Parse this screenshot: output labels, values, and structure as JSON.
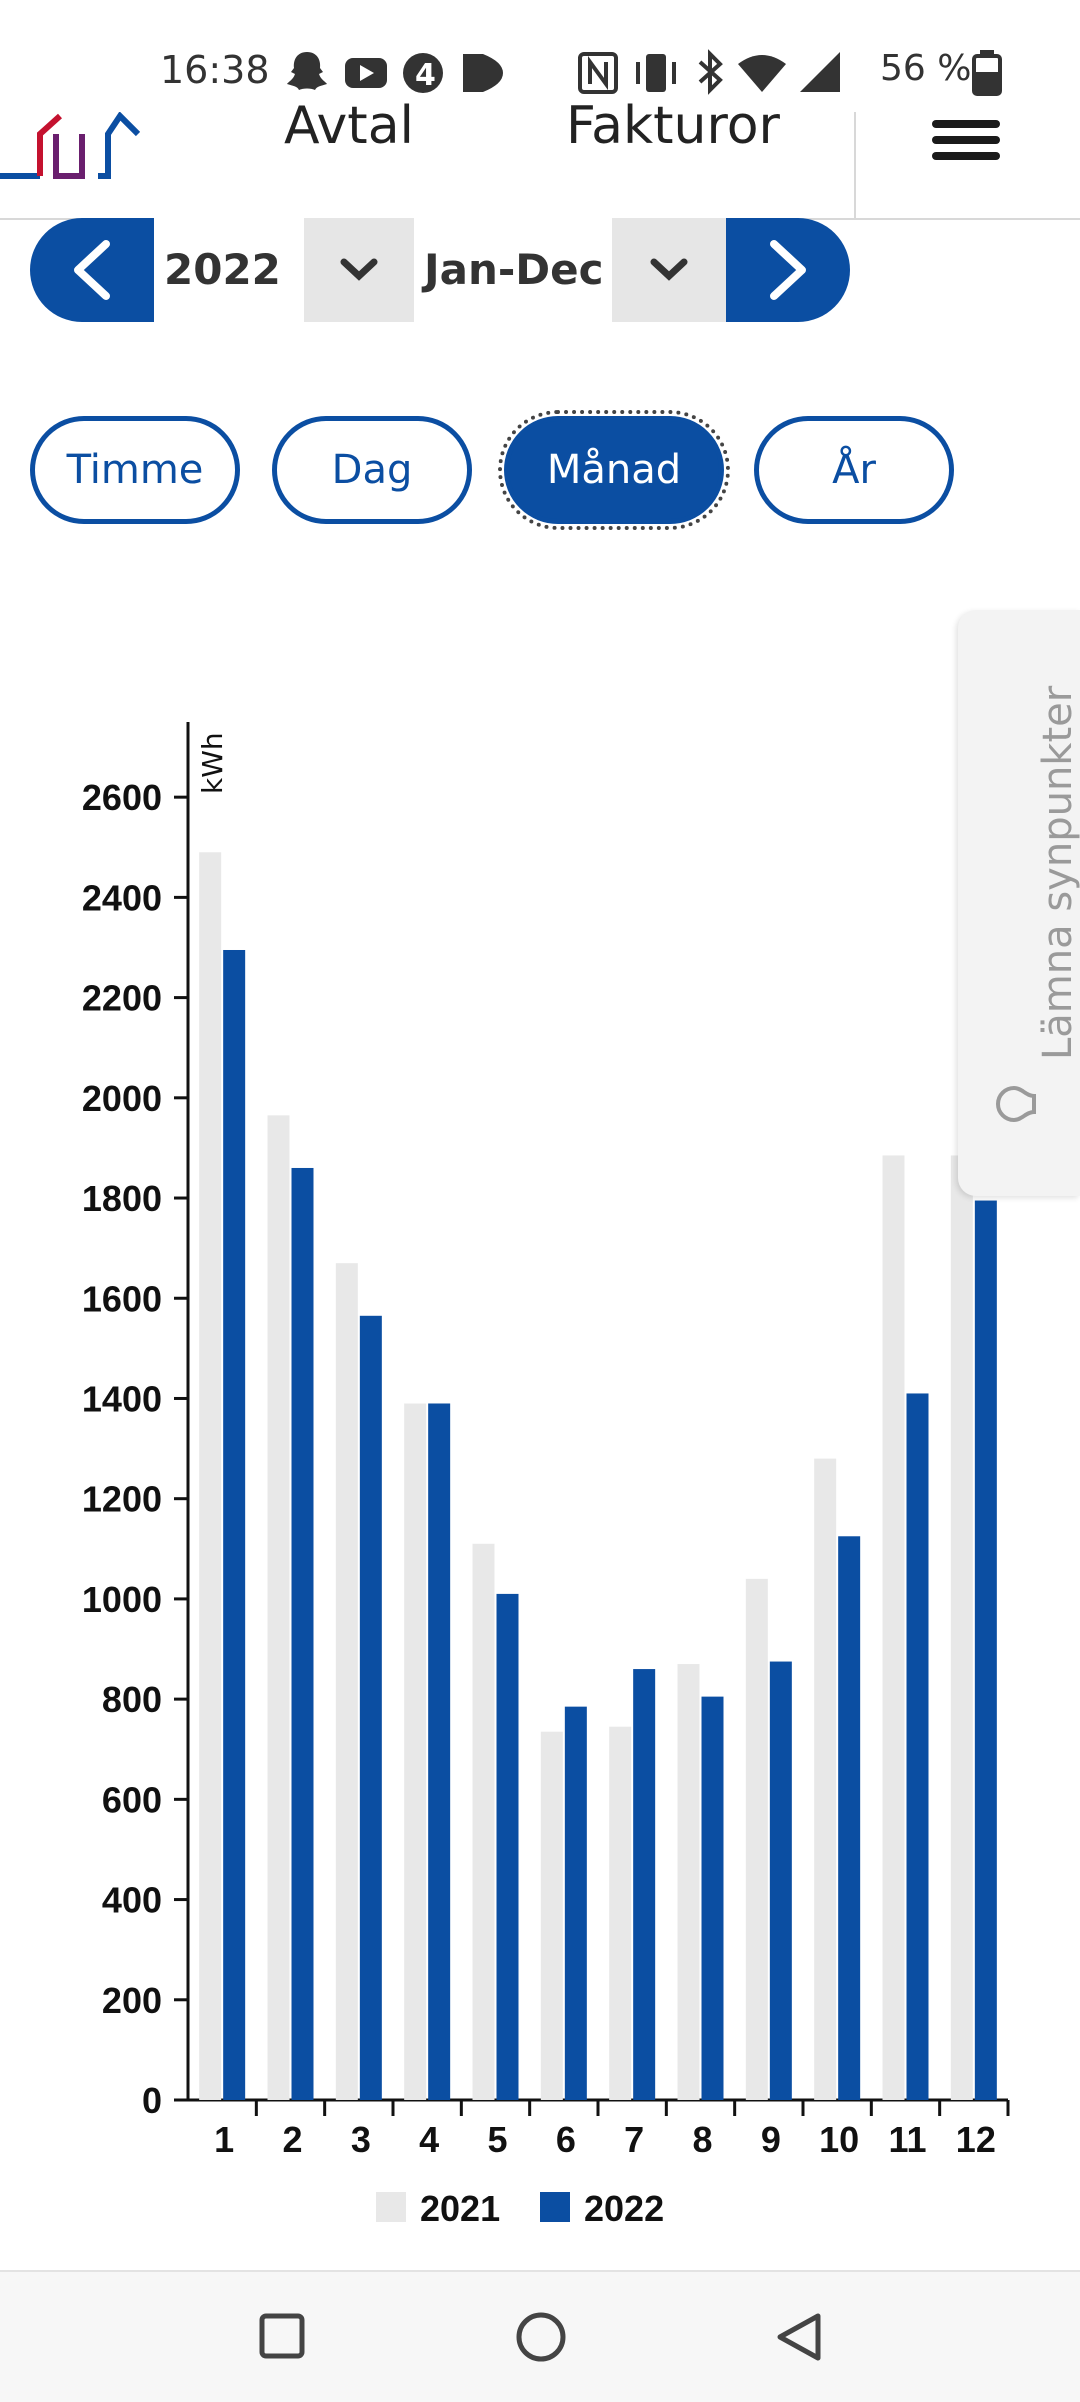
{
  "status_bar": {
    "time": "16:38",
    "battery": "56 %"
  },
  "header": {
    "tabs": [
      {
        "label": "Avtal"
      },
      {
        "label": "Fakturor"
      }
    ]
  },
  "period_selector": {
    "year": "2022",
    "range": "Jan-Dec"
  },
  "granularity": [
    {
      "label": "Timme",
      "active": false
    },
    {
      "label": "Dag",
      "active": false
    },
    {
      "label": "Månad",
      "active": true
    },
    {
      "label": "År",
      "active": false
    }
  ],
  "feedback_tab": {
    "label": "Lämna synpunkter"
  },
  "colors": {
    "brand_blue": "#0b4ea2",
    "series_2021": "#e8e8e8",
    "series_2022": "#0b4ea2"
  },
  "chart_data": {
    "type": "bar",
    "categories": [
      "1",
      "2",
      "3",
      "4",
      "5",
      "6",
      "7",
      "8",
      "9",
      "10",
      "11",
      "12"
    ],
    "series": [
      {
        "name": "2021",
        "values": [
          2490,
          1965,
          1670,
          1390,
          1110,
          735,
          745,
          870,
          1040,
          1280,
          1885,
          1885
        ]
      },
      {
        "name": "2022",
        "values": [
          2295,
          1860,
          1565,
          1390,
          1010,
          785,
          860,
          805,
          875,
          1125,
          1410,
          1795
        ]
      }
    ],
    "ylabel": "kWh",
    "ylim": [
      0,
      2750
    ],
    "yticks": [
      0,
      200,
      400,
      600,
      800,
      1000,
      1200,
      1400,
      1600,
      1800,
      2000,
      2200,
      2400,
      2600
    ],
    "grid": false,
    "legend_placement": "bottom"
  }
}
